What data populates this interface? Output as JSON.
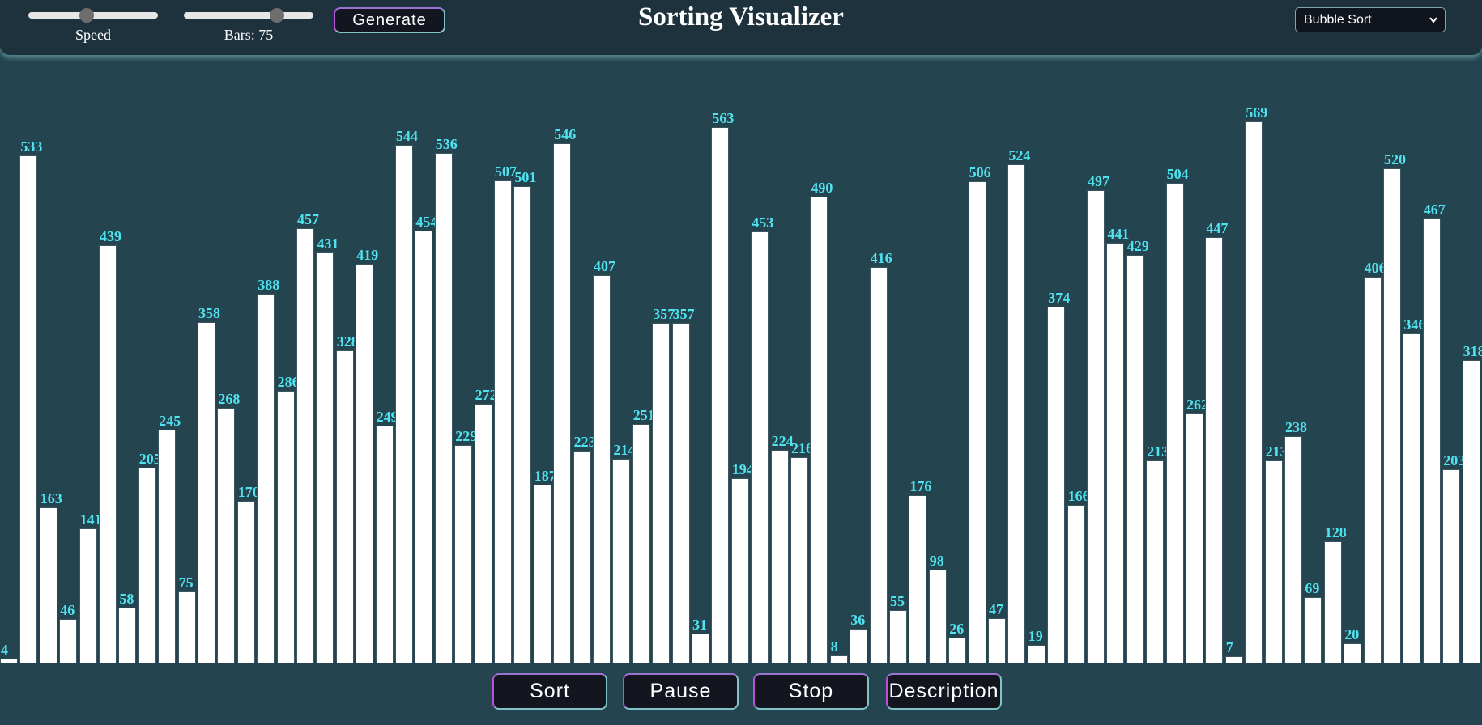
{
  "header": {
    "title": "Sorting Visualizer",
    "speed": {
      "label": "Speed",
      "value_fraction": 0.45
    },
    "bars": {
      "label": "Bars: 75",
      "value_fraction": 0.72
    },
    "generate_label": "Generate",
    "algorithm": {
      "selected": "Bubble Sort",
      "chevron": "chevron-down-icon"
    }
  },
  "controls": {
    "sort_label": "Sort",
    "pause_label": "Pause",
    "stop_label": "Stop",
    "description_label": "Description"
  },
  "colors": {
    "background": "#24444f",
    "header": "#1e323d",
    "bar": "#ffffff",
    "bar_label": "#4fe3f0",
    "button": "#14161f"
  },
  "bar_values": [
    4,
    533,
    163,
    46,
    141,
    439,
    58,
    205,
    245,
    75,
    358,
    268,
    170,
    388,
    286,
    457,
    431,
    328,
    419,
    249,
    544,
    454,
    536,
    229,
    272,
    507,
    501,
    187,
    546,
    223,
    407,
    214,
    251,
    357,
    357,
    31,
    563,
    194,
    453,
    224,
    216,
    490,
    8,
    36,
    416,
    55,
    176,
    98,
    26,
    506,
    47,
    524,
    19,
    374,
    166,
    497,
    441,
    429,
    213,
    504,
    262,
    447,
    7,
    569,
    213,
    238,
    69,
    128,
    20,
    406,
    520,
    346,
    467,
    203,
    318
  ]
}
